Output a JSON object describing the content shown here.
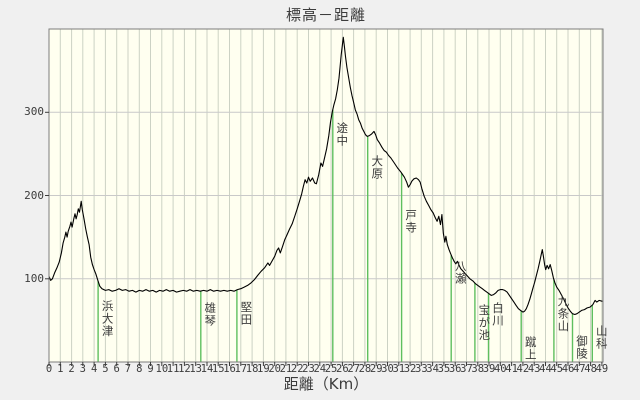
{
  "colors": {
    "page_bg": "#f0f0f0",
    "plot_bg": "#fffff0",
    "grid_vertical": "#ccd2c4",
    "grid_horizontal": "#c9c9c9",
    "station_line": "#5fbf5f",
    "profile_line": "#000000",
    "border": "#7d7d7d",
    "tick": "#3c3c3c",
    "text": "#3c3c3c"
  },
  "chart_data": {
    "type": "line",
    "title": "標高－距離",
    "xlabel": "距離（Km）",
    "x_unit": "km",
    "y_unit": "m",
    "xlim": [
      0,
      49.1
    ],
    "ylim": [
      0,
      400
    ],
    "x_tick_min": 0,
    "x_tick_max": 49,
    "x_tick_step": 1,
    "y_ticks": [
      100,
      200,
      300
    ],
    "grid": true,
    "legend": "none",
    "stations": [
      {
        "id": "hamaotsu",
        "name": "浜大津",
        "km": 4.35,
        "label_top": 300
      },
      {
        "id": "ogoto",
        "name": "雄琴",
        "km": 13.45,
        "label_top": 302
      },
      {
        "id": "katata",
        "name": "堅田",
        "km": 16.65,
        "label_top": 301
      },
      {
        "id": "tochu",
        "name": "途中",
        "km": 25.15,
        "label_top": 122
      },
      {
        "id": "ohara",
        "name": "大原",
        "km": 28.25,
        "label_top": 155
      },
      {
        "id": "todera",
        "name": "戸寺",
        "km": 31.25,
        "label_top": 209
      },
      {
        "id": "yase",
        "name": "八瀬",
        "km": 35.65,
        "label_top": 260
      },
      {
        "id": "takaragaike",
        "name": "宝が池",
        "km": 37.75,
        "label_top": 304
      },
      {
        "id": "shirakawa",
        "name": "白川",
        "km": 38.95,
        "label_top": 302
      },
      {
        "id": "keage",
        "name": "蹴上",
        "km": 41.85,
        "label_top": 336
      },
      {
        "id": "kujoyama",
        "name": "九条山",
        "km": 44.75,
        "label_top": 295
      },
      {
        "id": "misasagi",
        "name": "御陵",
        "km": 46.4,
        "label_top": 335
      },
      {
        "id": "yamashina",
        "name": "山科",
        "km": 48.15,
        "label_top": 325
      }
    ],
    "profile": [
      [
        0,
        103
      ],
      [
        0.15,
        98
      ],
      [
        0.3,
        100
      ],
      [
        0.5,
        107
      ],
      [
        0.7,
        113
      ],
      [
        0.9,
        120
      ],
      [
        1.1,
        131
      ],
      [
        1.25,
        143
      ],
      [
        1.4,
        150
      ],
      [
        1.5,
        156
      ],
      [
        1.6,
        150
      ],
      [
        1.7,
        157
      ],
      [
        1.85,
        163
      ],
      [
        1.95,
        168
      ],
      [
        2.05,
        162
      ],
      [
        2.2,
        172
      ],
      [
        2.3,
        178
      ],
      [
        2.4,
        172
      ],
      [
        2.5,
        177
      ],
      [
        2.6,
        184
      ],
      [
        2.7,
        180
      ],
      [
        2.85,
        193
      ],
      [
        2.95,
        183
      ],
      [
        3.1,
        172
      ],
      [
        3.25,
        160
      ],
      [
        3.4,
        150
      ],
      [
        3.55,
        141
      ],
      [
        3.7,
        126
      ],
      [
        3.85,
        117
      ],
      [
        4.0,
        111
      ],
      [
        4.15,
        106
      ],
      [
        4.35,
        97
      ],
      [
        4.5,
        91
      ],
      [
        4.7,
        88
      ],
      [
        5.0,
        86
      ],
      [
        5.3,
        87
      ],
      [
        5.6,
        85
      ],
      [
        5.9,
        86
      ],
      [
        6.2,
        88
      ],
      [
        6.5,
        86
      ],
      [
        6.8,
        87
      ],
      [
        7.1,
        85
      ],
      [
        7.4,
        86
      ],
      [
        7.7,
        84
      ],
      [
        8.0,
        86
      ],
      [
        8.3,
        85
      ],
      [
        8.6,
        87
      ],
      [
        8.9,
        85
      ],
      [
        9.2,
        86
      ],
      [
        9.5,
        84
      ],
      [
        9.8,
        86
      ],
      [
        10.1,
        85
      ],
      [
        10.4,
        87
      ],
      [
        10.7,
        85
      ],
      [
        11.0,
        86
      ],
      [
        11.3,
        84
      ],
      [
        11.6,
        85
      ],
      [
        11.9,
        86
      ],
      [
        12.2,
        85
      ],
      [
        12.5,
        87
      ],
      [
        12.8,
        85
      ],
      [
        13.1,
        86
      ],
      [
        13.4,
        85
      ],
      [
        13.7,
        86
      ],
      [
        14.0,
        85
      ],
      [
        14.3,
        87
      ],
      [
        14.6,
        85
      ],
      [
        14.9,
        86
      ],
      [
        15.2,
        85
      ],
      [
        15.5,
        86
      ],
      [
        15.8,
        85
      ],
      [
        16.1,
        86
      ],
      [
        16.4,
        85
      ],
      [
        16.7,
        87
      ],
      [
        17.0,
        88
      ],
      [
        17.3,
        90
      ],
      [
        17.6,
        92
      ],
      [
        17.9,
        95
      ],
      [
        18.2,
        99
      ],
      [
        18.5,
        104
      ],
      [
        18.8,
        109
      ],
      [
        19.1,
        113
      ],
      [
        19.4,
        119
      ],
      [
        19.55,
        116
      ],
      [
        19.8,
        122
      ],
      [
        20.0,
        127
      ],
      [
        20.2,
        134
      ],
      [
        20.35,
        137
      ],
      [
        20.5,
        131
      ],
      [
        20.7,
        139
      ],
      [
        20.9,
        147
      ],
      [
        21.1,
        153
      ],
      [
        21.3,
        159
      ],
      [
        21.55,
        166
      ],
      [
        21.8,
        176
      ],
      [
        22.0,
        184
      ],
      [
        22.2,
        193
      ],
      [
        22.4,
        202
      ],
      [
        22.55,
        211
      ],
      [
        22.7,
        219
      ],
      [
        22.85,
        215
      ],
      [
        23.0,
        222
      ],
      [
        23.15,
        217
      ],
      [
        23.35,
        221
      ],
      [
        23.55,
        215
      ],
      [
        23.7,
        214
      ],
      [
        23.9,
        225
      ],
      [
        24.1,
        239
      ],
      [
        24.25,
        235
      ],
      [
        24.45,
        247
      ],
      [
        24.6,
        256
      ],
      [
        24.8,
        272
      ],
      [
        24.95,
        288
      ],
      [
        25.1,
        300
      ],
      [
        25.25,
        309
      ],
      [
        25.4,
        316
      ],
      [
        25.55,
        327
      ],
      [
        25.7,
        341
      ],
      [
        25.8,
        355
      ],
      [
        25.9,
        369
      ],
      [
        26.0,
        381
      ],
      [
        26.08,
        390
      ],
      [
        26.18,
        379
      ],
      [
        26.28,
        367
      ],
      [
        26.4,
        354
      ],
      [
        26.55,
        342
      ],
      [
        26.7,
        330
      ],
      [
        26.85,
        320
      ],
      [
        27.0,
        312
      ],
      [
        27.15,
        303
      ],
      [
        27.3,
        298
      ],
      [
        27.45,
        291
      ],
      [
        27.6,
        287
      ],
      [
        27.75,
        281
      ],
      [
        27.9,
        277
      ],
      [
        28.05,
        273
      ],
      [
        28.2,
        271
      ],
      [
        28.4,
        272
      ],
      [
        28.6,
        274
      ],
      [
        28.8,
        277
      ],
      [
        28.95,
        273
      ],
      [
        29.1,
        267
      ],
      [
        29.3,
        263
      ],
      [
        29.5,
        258
      ],
      [
        29.7,
        254
      ],
      [
        29.9,
        252
      ],
      [
        30.1,
        248
      ],
      [
        30.3,
        245
      ],
      [
        30.6,
        239
      ],
      [
        30.9,
        233
      ],
      [
        31.2,
        228
      ],
      [
        31.5,
        222
      ],
      [
        31.7,
        216
      ],
      [
        31.85,
        210
      ],
      [
        32.0,
        213
      ],
      [
        32.15,
        217
      ],
      [
        32.35,
        220
      ],
      [
        32.55,
        221
      ],
      [
        32.75,
        219
      ],
      [
        32.9,
        216
      ],
      [
        33.05,
        208
      ],
      [
        33.25,
        199
      ],
      [
        33.45,
        193
      ],
      [
        33.65,
        188
      ],
      [
        33.85,
        183
      ],
      [
        34.05,
        179
      ],
      [
        34.25,
        173
      ],
      [
        34.4,
        169
      ],
      [
        34.55,
        175
      ],
      [
        34.7,
        165
      ],
      [
        34.82,
        177
      ],
      [
        34.95,
        155
      ],
      [
        35.08,
        144
      ],
      [
        35.18,
        151
      ],
      [
        35.3,
        141
      ],
      [
        35.45,
        135
      ],
      [
        35.6,
        130
      ],
      [
        35.75,
        125
      ],
      [
        35.9,
        121
      ],
      [
        36.05,
        118
      ],
      [
        36.2,
        121
      ],
      [
        36.35,
        116
      ],
      [
        36.5,
        112
      ],
      [
        36.7,
        109
      ],
      [
        36.9,
        106
      ],
      [
        37.1,
        103
      ],
      [
        37.3,
        100
      ],
      [
        37.6,
        97
      ],
      [
        37.8,
        94
      ],
      [
        38.0,
        92
      ],
      [
        38.2,
        90
      ],
      [
        38.4,
        88
      ],
      [
        38.6,
        86
      ],
      [
        38.8,
        84
      ],
      [
        39.0,
        82
      ],
      [
        39.2,
        80
      ],
      [
        39.4,
        81
      ],
      [
        39.6,
        83
      ],
      [
        39.8,
        86
      ],
      [
        40.0,
        87
      ],
      [
        40.2,
        87
      ],
      [
        40.4,
        86
      ],
      [
        40.6,
        84
      ],
      [
        40.8,
        80
      ],
      [
        41.0,
        76
      ],
      [
        41.2,
        72
      ],
      [
        41.4,
        68
      ],
      [
        41.6,
        64
      ],
      [
        41.8,
        62
      ],
      [
        42.0,
        60
      ],
      [
        42.15,
        61
      ],
      [
        42.3,
        64
      ],
      [
        42.45,
        69
      ],
      [
        42.6,
        75
      ],
      [
        42.75,
        82
      ],
      [
        42.9,
        89
      ],
      [
        43.05,
        96
      ],
      [
        43.2,
        104
      ],
      [
        43.35,
        112
      ],
      [
        43.5,
        121
      ],
      [
        43.62,
        129
      ],
      [
        43.72,
        135
      ],
      [
        43.82,
        127
      ],
      [
        43.92,
        117
      ],
      [
        44.02,
        111
      ],
      [
        44.15,
        116
      ],
      [
        44.28,
        112
      ],
      [
        44.42,
        117
      ],
      [
        44.55,
        110
      ],
      [
        44.7,
        101
      ],
      [
        44.85,
        95
      ],
      [
        45.0,
        90
      ],
      [
        45.2,
        86
      ],
      [
        45.4,
        81
      ],
      [
        45.6,
        76
      ],
      [
        45.8,
        70
      ],
      [
        46.0,
        65
      ],
      [
        46.2,
        61
      ],
      [
        46.4,
        58
      ],
      [
        46.6,
        57
      ],
      [
        46.8,
        58
      ],
      [
        47.0,
        60
      ],
      [
        47.2,
        62
      ],
      [
        47.45,
        63
      ],
      [
        47.7,
        65
      ],
      [
        47.95,
        66
      ],
      [
        48.2,
        69
      ],
      [
        48.4,
        74
      ],
      [
        48.55,
        72
      ],
      [
        48.75,
        74
      ],
      [
        49.0,
        73
      ],
      [
        49.05,
        73
      ]
    ]
  }
}
